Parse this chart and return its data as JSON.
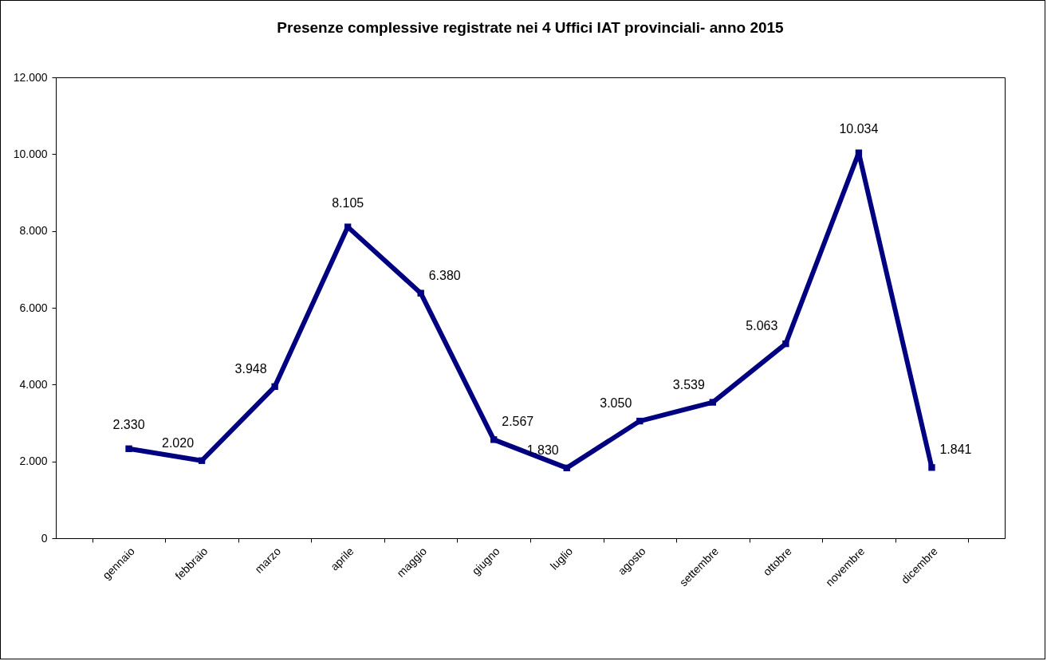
{
  "chart_data": {
    "type": "line",
    "title": "Presenze complessive registrate nei 4 Uffici IAT provinciali- anno 2015",
    "categories": [
      "gennaio",
      "febbraio",
      "marzo",
      "aprile",
      "maggio",
      "giugno",
      "luglio",
      "agosto",
      "settembre",
      "ottobre",
      "novembre",
      "dicembre"
    ],
    "series": [
      {
        "color": "#000080",
        "values": [
          2330,
          2020,
          3948,
          8105,
          6380,
          2567,
          1830,
          3050,
          3539,
          5063,
          10034,
          1841
        ],
        "value_labels": [
          "2.330",
          "2.020",
          "3.948",
          "8.105",
          "6.380",
          "2.567",
          "1.830",
          "3.050",
          "3.539",
          "5.063",
          "10.034",
          "1.841"
        ]
      }
    ],
    "ylim": [
      0,
      12000
    ],
    "yticks": [
      {
        "value": 0,
        "label": "0"
      },
      {
        "value": 2000,
        "label": "2.000"
      },
      {
        "value": 4000,
        "label": "4.000"
      },
      {
        "value": 6000,
        "label": "6.000"
      },
      {
        "value": 8000,
        "label": "8.000"
      },
      {
        "value": 10000,
        "label": "10.000"
      },
      {
        "value": 12000,
        "label": "12.000"
      }
    ],
    "grid": false,
    "marker": "square",
    "line_style": "solid"
  }
}
